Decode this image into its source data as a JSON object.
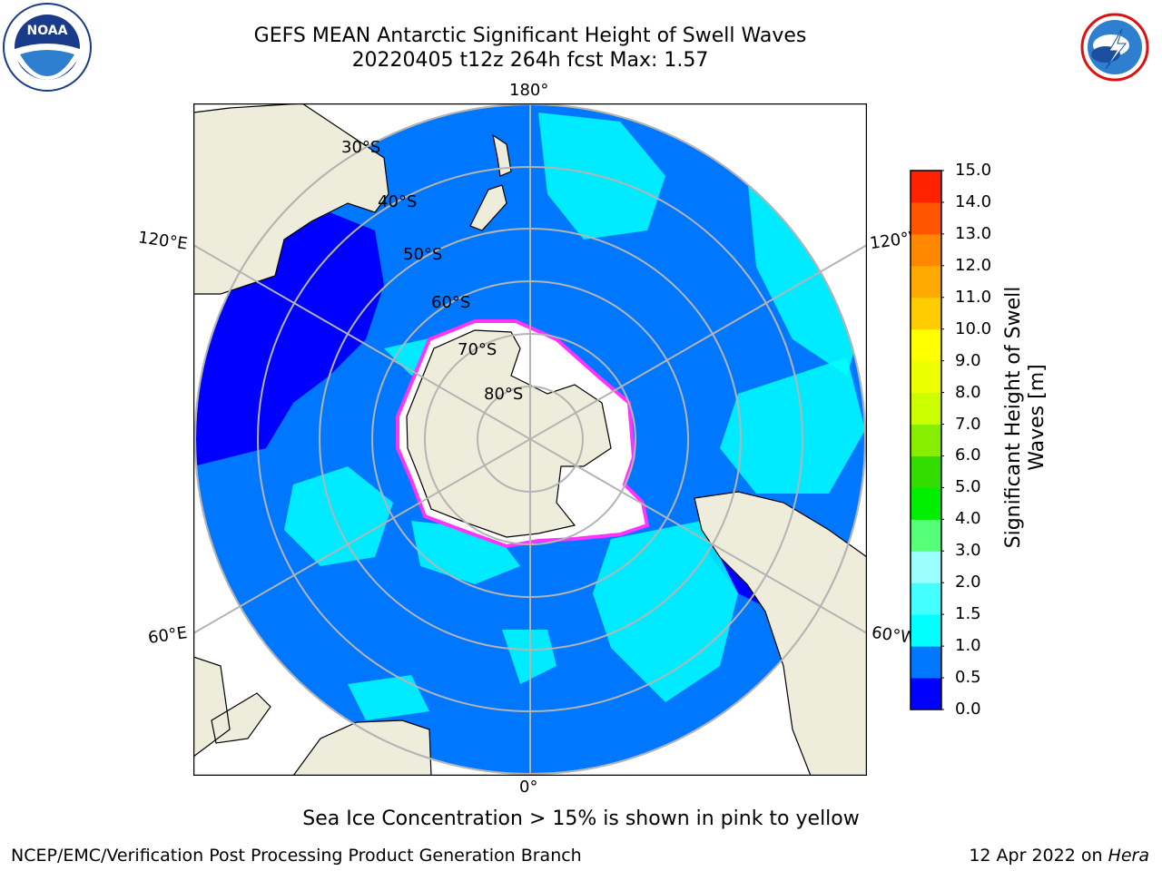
{
  "title": {
    "line1": "GEFS MEAN Antarctic Significant Height of Swell Waves",
    "line2": "20220405 t12z 264h fcst   Max: 1.57"
  },
  "logos": {
    "noaa": {
      "text": "NOAA",
      "ring_text": "NATIONAL OCEANIC AND ATMOSPHERIC ADMINISTRATION · U.S. DEPARTMENT OF COMMERCE"
    },
    "nws": {
      "ring_text": "NATIONAL WEATHER SERVICE"
    }
  },
  "map": {
    "projection": "south polar stereographic",
    "longitude_labels": {
      "top": "180°",
      "bottom": "0°",
      "upper_left": "120°E",
      "upper_right": "120°W",
      "lower_left": "60°E",
      "lower_right": "60°W"
    },
    "latitude_labels": [
      "30°S",
      "40°S",
      "50°S",
      "60°S",
      "70°S",
      "80°S"
    ],
    "colors": {
      "land": "#eeeddb",
      "ocean_default": "#0077ff",
      "swell_low": "#0000ff",
      "swell_mid": "#00ffff",
      "sea_ice": "#ffffff",
      "sea_ice_edge": "#ff33ff",
      "graticule": "#b4b4b4"
    }
  },
  "colorbar": {
    "label": "Significant Height of Swell Waves [m]",
    "ticks": [
      "0.0",
      "0.5",
      "1.0",
      "1.5",
      "2.0",
      "3.0",
      "4.0",
      "5.0",
      "6.0",
      "7.0",
      "8.0",
      "9.0",
      "10.0",
      "11.0",
      "12.0",
      "13.0",
      "14.0",
      "15.0"
    ],
    "colors": [
      "#0000ff",
      "#0077ff",
      "#00ffff",
      "#44ffff",
      "#99ffff",
      "#55ff77",
      "#00ee00",
      "#33dd00",
      "#88ee00",
      "#ccff00",
      "#eeff00",
      "#ffff00",
      "#ffcc00",
      "#ffaa00",
      "#ff8800",
      "#ff5500",
      "#ff2200"
    ]
  },
  "caption": "Sea Ice Concentration > 15% is shown in pink to yellow",
  "footer": {
    "left": "NCEP/EMC/Verification Post Processing Product Generation Branch",
    "right_prefix": "12 Apr 2022 on ",
    "right_machine": "Hera"
  }
}
